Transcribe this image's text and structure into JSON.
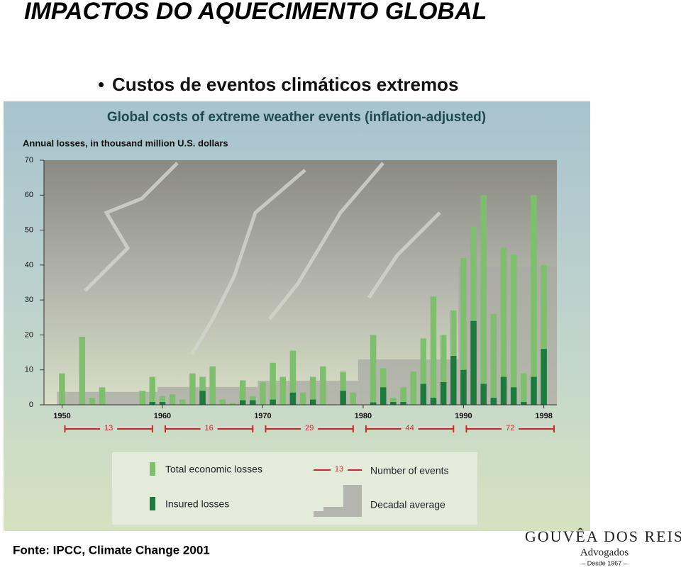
{
  "slide": {
    "title": "IMPACTOS DO AQUECIMENTO GLOBAL",
    "bullet": "Custos de eventos climáticos extremos",
    "source": "Fonte: IPCC, Climate Change 2001",
    "logo": {
      "name": "GOUVÊA DOS REIS",
      "subtitle": "Advogados",
      "since": "– Desde 1967 –"
    }
  },
  "chart_data": {
    "type": "bar",
    "title": "Global costs of extreme weather events (inflation-adjusted)",
    "y_label": "Annual losses, in thousand million U.S. dollars",
    "x": [
      1950,
      1951,
      1952,
      1953,
      1954,
      1955,
      1956,
      1957,
      1958,
      1959,
      1960,
      1961,
      1962,
      1963,
      1964,
      1965,
      1966,
      1967,
      1968,
      1969,
      1970,
      1971,
      1972,
      1973,
      1974,
      1975,
      1976,
      1977,
      1978,
      1979,
      1980,
      1981,
      1982,
      1983,
      1984,
      1985,
      1986,
      1987,
      1988,
      1989,
      1990,
      1991,
      1992,
      1993,
      1994,
      1995,
      1996,
      1997,
      1998
    ],
    "series": [
      {
        "name": "Total economic losses",
        "color": "#7dbf6c",
        "values": [
          9,
          null,
          19.5,
          2,
          5,
          null,
          null,
          null,
          4,
          8,
          2.5,
          3,
          1.5,
          9,
          8,
          11,
          1.5,
          0.5,
          7,
          2.5,
          6.5,
          12,
          8,
          15.5,
          3.5,
          8,
          11,
          null,
          9.5,
          3.5,
          null,
          20,
          10.5,
          2,
          5,
          9.5,
          19,
          31,
          20,
          27,
          42,
          51,
          60,
          26,
          45,
          43,
          9,
          60,
          40
        ]
      },
      {
        "name": "Insured losses",
        "color": "#1b7a3c",
        "values": [
          null,
          null,
          null,
          null,
          null,
          null,
          null,
          null,
          null,
          0.8,
          0.8,
          null,
          null,
          null,
          4,
          null,
          null,
          null,
          1.3,
          1.3,
          null,
          1.5,
          null,
          3.5,
          null,
          1.5,
          null,
          null,
          4,
          null,
          null,
          0.7,
          5,
          0.8,
          0.8,
          null,
          6,
          2,
          6.5,
          14,
          10,
          24,
          6,
          2,
          8,
          5,
          0.8,
          8,
          16
        ]
      }
    ],
    "decadal_average": {
      "name": "Decadal average",
      "color": "#a9a9a4",
      "decade_starts": [
        1950,
        1960,
        1970,
        1980,
        1990
      ],
      "values": [
        3.7,
        5.1,
        6.9,
        13,
        39.6
      ]
    },
    "events": {
      "name": "Number of events",
      "color": "#d2232a",
      "values": [
        13,
        16,
        29,
        44,
        72
      ]
    },
    "xlim": [
      1948.2,
      1999.3
    ],
    "xticks": [
      1950,
      1960,
      1970,
      1980,
      1990,
      1998
    ],
    "ylim": [
      0,
      70
    ],
    "yticks": [
      0,
      10,
      20,
      30,
      40,
      50,
      60,
      70
    ]
  }
}
